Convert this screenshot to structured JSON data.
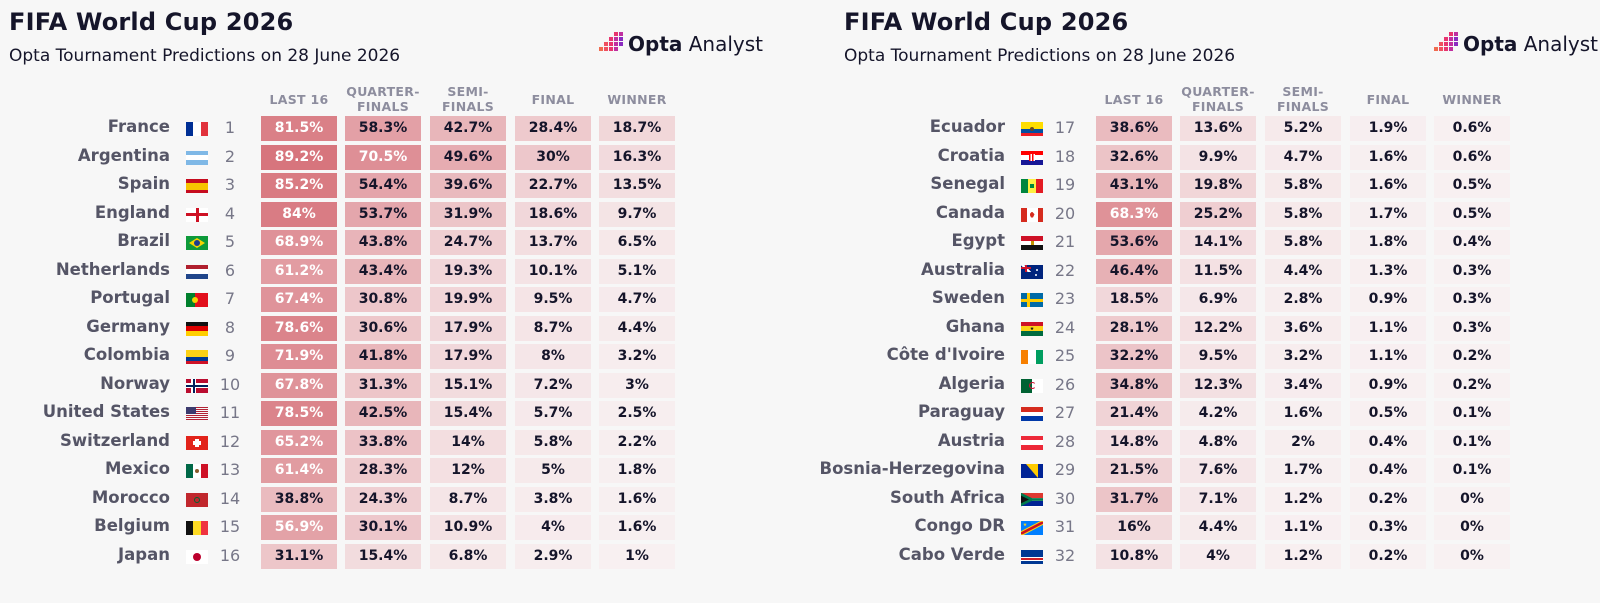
{
  "colors": {
    "cell_max": "#d7747c",
    "cell_min": "#f8f1f2",
    "light_text": "#ffffff",
    "dark_text": "#15152a"
  },
  "panels": [
    {
      "title": "FIFA World Cup 2026",
      "subtitle": "Opta Tournament Predictions on 28 June 2026",
      "logo": {
        "brand": "Opta",
        "suffix": " Analyst"
      },
      "headers": [
        {
          "line1": "LAST 16",
          "line2": ""
        },
        {
          "line1": "QUARTER-",
          "line2": "FINALS"
        },
        {
          "line1": "SEMI-",
          "line2": "FINALS"
        },
        {
          "line1": "FINAL",
          "line2": ""
        },
        {
          "line1": "WINNER",
          "line2": ""
        }
      ],
      "rows": [
        {
          "team": "France",
          "flag": "france-flag-icon",
          "rank": "1",
          "values": [
            "81.5%",
            "58.3%",
            "42.7%",
            "28.4%",
            "18.7%"
          ]
        },
        {
          "team": "Argentina",
          "flag": "argentina-flag-icon",
          "rank": "2",
          "values": [
            "89.2%",
            "70.5%",
            "49.6%",
            "30%",
            "16.3%"
          ]
        },
        {
          "team": "Spain",
          "flag": "spain-flag-icon",
          "rank": "3",
          "values": [
            "85.2%",
            "54.4%",
            "39.6%",
            "22.7%",
            "13.5%"
          ]
        },
        {
          "team": "England",
          "flag": "england-flag-icon",
          "rank": "4",
          "values": [
            "84%",
            "53.7%",
            "31.9%",
            "18.6%",
            "9.7%"
          ]
        },
        {
          "team": "Brazil",
          "flag": "brazil-flag-icon",
          "rank": "5",
          "values": [
            "68.9%",
            "43.8%",
            "24.7%",
            "13.7%",
            "6.5%"
          ]
        },
        {
          "team": "Netherlands",
          "flag": "netherlands-flag-icon",
          "rank": "6",
          "values": [
            "61.2%",
            "43.4%",
            "19.3%",
            "10.1%",
            "5.1%"
          ]
        },
        {
          "team": "Portugal",
          "flag": "portugal-flag-icon",
          "rank": "7",
          "values": [
            "67.4%",
            "30.8%",
            "19.9%",
            "9.5%",
            "4.7%"
          ]
        },
        {
          "team": "Germany",
          "flag": "germany-flag-icon",
          "rank": "8",
          "values": [
            "78.6%",
            "30.6%",
            "17.9%",
            "8.7%",
            "4.4%"
          ]
        },
        {
          "team": "Colombia",
          "flag": "colombia-flag-icon",
          "rank": "9",
          "values": [
            "71.9%",
            "41.8%",
            "17.9%",
            "8%",
            "3.2%"
          ]
        },
        {
          "team": "Norway",
          "flag": "norway-flag-icon",
          "rank": "10",
          "values": [
            "67.8%",
            "31.3%",
            "15.1%",
            "7.2%",
            "3%"
          ]
        },
        {
          "team": "United States",
          "flag": "usa-flag-icon",
          "rank": "11",
          "values": [
            "78.5%",
            "42.5%",
            "15.4%",
            "5.7%",
            "2.5%"
          ]
        },
        {
          "team": "Switzerland",
          "flag": "switzerland-flag-icon",
          "rank": "12",
          "values": [
            "65.2%",
            "33.8%",
            "14%",
            "5.8%",
            "2.2%"
          ]
        },
        {
          "team": "Mexico",
          "flag": "mexico-flag-icon",
          "rank": "13",
          "values": [
            "61.4%",
            "28.3%",
            "12%",
            "5%",
            "1.8%"
          ]
        },
        {
          "team": "Morocco",
          "flag": "morocco-flag-icon",
          "rank": "14",
          "values": [
            "38.8%",
            "24.3%",
            "8.7%",
            "3.8%",
            "1.6%"
          ]
        },
        {
          "team": "Belgium",
          "flag": "belgium-flag-icon",
          "rank": "15",
          "values": [
            "56.9%",
            "30.1%",
            "10.9%",
            "4%",
            "1.6%"
          ]
        },
        {
          "team": "Japan",
          "flag": "japan-flag-icon",
          "rank": "16",
          "values": [
            "31.1%",
            "15.4%",
            "6.8%",
            "2.9%",
            "1%"
          ]
        }
      ]
    },
    {
      "title": "FIFA World Cup 2026",
      "subtitle": "Opta Tournament Predictions on 28 June 2026",
      "logo": {
        "brand": "Opta",
        "suffix": " Analyst"
      },
      "headers": [
        {
          "line1": "LAST 16",
          "line2": ""
        },
        {
          "line1": "QUARTER-",
          "line2": "FINALS"
        },
        {
          "line1": "SEMI-",
          "line2": "FINALS"
        },
        {
          "line1": "FINAL",
          "line2": ""
        },
        {
          "line1": "WINNER",
          "line2": ""
        }
      ],
      "rows": [
        {
          "team": "Ecuador",
          "flag": "ecuador-flag-icon",
          "rank": "17",
          "values": [
            "38.6%",
            "13.6%",
            "5.2%",
            "1.9%",
            "0.6%"
          ]
        },
        {
          "team": "Croatia",
          "flag": "croatia-flag-icon",
          "rank": "18",
          "values": [
            "32.6%",
            "9.9%",
            "4.7%",
            "1.6%",
            "0.6%"
          ]
        },
        {
          "team": "Senegal",
          "flag": "senegal-flag-icon",
          "rank": "19",
          "values": [
            "43.1%",
            "19.8%",
            "5.8%",
            "1.6%",
            "0.5%"
          ]
        },
        {
          "team": "Canada",
          "flag": "canada-flag-icon",
          "rank": "20",
          "values": [
            "68.3%",
            "25.2%",
            "5.8%",
            "1.7%",
            "0.5%"
          ]
        },
        {
          "team": "Egypt",
          "flag": "egypt-flag-icon",
          "rank": "21",
          "values": [
            "53.6%",
            "14.1%",
            "5.8%",
            "1.8%",
            "0.4%"
          ]
        },
        {
          "team": "Australia",
          "flag": "australia-flag-icon",
          "rank": "22",
          "values": [
            "46.4%",
            "11.5%",
            "4.4%",
            "1.3%",
            "0.3%"
          ]
        },
        {
          "team": "Sweden",
          "flag": "sweden-flag-icon",
          "rank": "23",
          "values": [
            "18.5%",
            "6.9%",
            "2.8%",
            "0.9%",
            "0.3%"
          ]
        },
        {
          "team": "Ghana",
          "flag": "ghana-flag-icon",
          "rank": "24",
          "values": [
            "28.1%",
            "12.2%",
            "3.6%",
            "1.1%",
            "0.3%"
          ]
        },
        {
          "team": "Côte d'Ivoire",
          "flag": "cote-divoire-flag-icon",
          "rank": "25",
          "values": [
            "32.2%",
            "9.5%",
            "3.2%",
            "1.1%",
            "0.2%"
          ]
        },
        {
          "team": "Algeria",
          "flag": "algeria-flag-icon",
          "rank": "26",
          "values": [
            "34.8%",
            "12.3%",
            "3.4%",
            "0.9%",
            "0.2%"
          ]
        },
        {
          "team": "Paraguay",
          "flag": "paraguay-flag-icon",
          "rank": "27",
          "values": [
            "21.4%",
            "4.2%",
            "1.6%",
            "0.5%",
            "0.1%"
          ]
        },
        {
          "team": "Austria",
          "flag": "austria-flag-icon",
          "rank": "28",
          "values": [
            "14.8%",
            "4.8%",
            "2%",
            "0.4%",
            "0.1%"
          ]
        },
        {
          "team": "Bosnia-Herzegovina",
          "flag": "bosnia-flag-icon",
          "rank": "29",
          "values": [
            "21.5%",
            "7.6%",
            "1.7%",
            "0.4%",
            "0.1%"
          ]
        },
        {
          "team": "South Africa",
          "flag": "south-africa-flag-icon",
          "rank": "30",
          "values": [
            "31.7%",
            "7.1%",
            "1.2%",
            "0.2%",
            "0%"
          ]
        },
        {
          "team": "Congo DR",
          "flag": "congo-dr-flag-icon",
          "rank": "31",
          "values": [
            "16%",
            "4.4%",
            "1.1%",
            "0.3%",
            "0%"
          ]
        },
        {
          "team": "Cabo Verde",
          "flag": "cabo-verde-flag-icon",
          "rank": "32",
          "values": [
            "10.8%",
            "4%",
            "1.2%",
            "0.2%",
            "0%"
          ]
        }
      ]
    }
  ],
  "chart_data": [
    {
      "type": "table",
      "title": "FIFA World Cup 2026",
      "subtitle": "Opta Tournament Predictions on 28 June 2026",
      "columns": [
        "LAST 16",
        "QUARTER-FINALS",
        "SEMI-FINALS",
        "FINAL",
        "WINNER"
      ],
      "rows": [
        "France",
        "Argentina",
        "Spain",
        "England",
        "Brazil",
        "Netherlands",
        "Portugal",
        "Germany",
        "Colombia",
        "Norway",
        "United States",
        "Switzerland",
        "Mexico",
        "Morocco",
        "Belgium",
        "Japan"
      ],
      "values": [
        [
          81.5,
          58.3,
          42.7,
          28.4,
          18.7
        ],
        [
          89.2,
          70.5,
          49.6,
          30,
          16.3
        ],
        [
          85.2,
          54.4,
          39.6,
          22.7,
          13.5
        ],
        [
          84,
          53.7,
          31.9,
          18.6,
          9.7
        ],
        [
          68.9,
          43.8,
          24.7,
          13.7,
          6.5
        ],
        [
          61.2,
          43.4,
          19.3,
          10.1,
          5.1
        ],
        [
          67.4,
          30.8,
          19.9,
          9.5,
          4.7
        ],
        [
          78.6,
          30.6,
          17.9,
          8.7,
          4.4
        ],
        [
          71.9,
          41.8,
          17.9,
          8,
          3.2
        ],
        [
          67.8,
          31.3,
          15.1,
          7.2,
          3
        ],
        [
          78.5,
          42.5,
          15.4,
          5.7,
          2.5
        ],
        [
          65.2,
          33.8,
          14,
          5.8,
          2.2
        ],
        [
          61.4,
          28.3,
          12,
          5,
          1.8
        ],
        [
          38.8,
          24.3,
          8.7,
          3.8,
          1.6
        ],
        [
          56.9,
          30.1,
          10.9,
          4,
          1.6
        ],
        [
          31.1,
          15.4,
          6.8,
          2.9,
          1
        ]
      ]
    },
    {
      "type": "table",
      "title": "FIFA World Cup 2026",
      "subtitle": "Opta Tournament Predictions on 28 June 2026",
      "columns": [
        "LAST 16",
        "QUARTER-FINALS",
        "SEMI-FINALS",
        "FINAL",
        "WINNER"
      ],
      "rows": [
        "Ecuador",
        "Croatia",
        "Senegal",
        "Canada",
        "Egypt",
        "Australia",
        "Sweden",
        "Ghana",
        "Côte d'Ivoire",
        "Algeria",
        "Paraguay",
        "Austria",
        "Bosnia-Herzegovina",
        "South Africa",
        "Congo DR",
        "Cabo Verde"
      ],
      "values": [
        [
          38.6,
          13.6,
          5.2,
          1.9,
          0.6
        ],
        [
          32.6,
          9.9,
          4.7,
          1.6,
          0.6
        ],
        [
          43.1,
          19.8,
          5.8,
          1.6,
          0.5
        ],
        [
          68.3,
          25.2,
          5.8,
          1.7,
          0.5
        ],
        [
          53.6,
          14.1,
          5.8,
          1.8,
          0.4
        ],
        [
          46.4,
          11.5,
          4.4,
          1.3,
          0.3
        ],
        [
          18.5,
          6.9,
          2.8,
          0.9,
          0.3
        ],
        [
          28.1,
          12.2,
          3.6,
          1.1,
          0.3
        ],
        [
          32.2,
          9.5,
          3.2,
          1.1,
          0.2
        ],
        [
          34.8,
          12.3,
          3.4,
          0.9,
          0.2
        ],
        [
          21.4,
          4.2,
          1.6,
          0.5,
          0.1
        ],
        [
          14.8,
          4.8,
          2,
          0.4,
          0.1
        ],
        [
          21.5,
          7.6,
          1.7,
          0.4,
          0.1
        ],
        [
          31.7,
          7.1,
          1.2,
          0.2,
          0
        ],
        [
          16,
          4.4,
          1.1,
          0.3,
          0
        ],
        [
          10.8,
          4,
          1.2,
          0.2,
          0
        ]
      ]
    }
  ]
}
